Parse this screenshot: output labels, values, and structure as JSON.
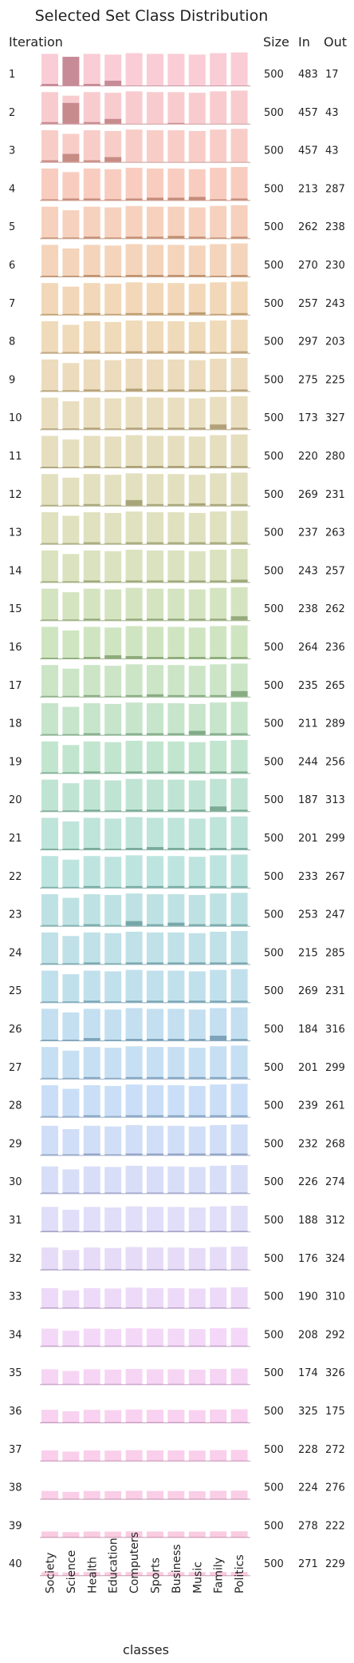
{
  "chart_data": {
    "type": "bar",
    "title": "Selected Set Class Distribution",
    "xlabel": "classes",
    "row_axis_label": "Iteration",
    "table_headers": [
      "Size",
      "In",
      "Out"
    ],
    "categories": [
      "Society",
      "Science",
      "Health",
      "Education",
      "Computers",
      "Sports",
      "Business",
      "Music",
      "Family",
      "Politics"
    ],
    "grid": false,
    "legend": "none",
    "palette": [
      "#f4a3b5",
      "#f2a48c",
      "#e8b87e",
      "#d7c28a",
      "#c5c98a",
      "#a8d08e",
      "#8fcfa8",
      "#88cdc4",
      "#8cc6dc",
      "#9ec4f0",
      "#c6c2f4",
      "#ebb8f2",
      "#f5a8dd",
      "#f6a0c2"
    ],
    "iterations": [
      {
        "iteration": "1",
        "size": 500,
        "in": 483,
        "out": 17,
        "in_counts": [
          2,
          36,
          2,
          6,
          0,
          0,
          0,
          0,
          0,
          0
        ]
      },
      {
        "iteration": "2",
        "size": 500,
        "in": 457,
        "out": 43,
        "in_counts": [
          2,
          26,
          2,
          6,
          0,
          0,
          1,
          0,
          0,
          0
        ]
      },
      {
        "iteration": "3",
        "size": 500,
        "in": 457,
        "out": 43,
        "in_counts": [
          2,
          10,
          2,
          6,
          0,
          0,
          0,
          0,
          0,
          0
        ]
      },
      {
        "iteration": "4",
        "size": 500,
        "in": 213,
        "out": 287,
        "in_counts": [
          1,
          2,
          2,
          1,
          2,
          3,
          3,
          4,
          1,
          2
        ]
      },
      {
        "iteration": "5",
        "size": 500,
        "in": 262,
        "out": 238,
        "in_counts": [
          1,
          1,
          2,
          1,
          2,
          2,
          3,
          2,
          1,
          2
        ]
      },
      {
        "iteration": "6",
        "size": 500,
        "in": 270,
        "out": 230,
        "in_counts": [
          1,
          1,
          2,
          1,
          2,
          2,
          2,
          2,
          1,
          2
        ]
      },
      {
        "iteration": "7",
        "size": 500,
        "in": 257,
        "out": 243,
        "in_counts": [
          1,
          1,
          2,
          1,
          2,
          2,
          2,
          3,
          1,
          2
        ]
      },
      {
        "iteration": "8",
        "size": 500,
        "in": 297,
        "out": 203,
        "in_counts": [
          1,
          1,
          2,
          1,
          2,
          2,
          2,
          2,
          1,
          2
        ]
      },
      {
        "iteration": "9",
        "size": 500,
        "in": 275,
        "out": 225,
        "in_counts": [
          1,
          1,
          2,
          1,
          3,
          2,
          2,
          2,
          1,
          2
        ]
      },
      {
        "iteration": "10",
        "size": 500,
        "in": 173,
        "out": 327,
        "in_counts": [
          1,
          1,
          2,
          1,
          2,
          2,
          2,
          2,
          6,
          2
        ]
      },
      {
        "iteration": "11",
        "size": 500,
        "in": 220,
        "out": 280,
        "in_counts": [
          1,
          1,
          2,
          1,
          2,
          2,
          2,
          2,
          2,
          2
        ]
      },
      {
        "iteration": "12",
        "size": 500,
        "in": 269,
        "out": 231,
        "in_counts": [
          1,
          1,
          2,
          1,
          7,
          2,
          2,
          3,
          2,
          2
        ]
      },
      {
        "iteration": "13",
        "size": 500,
        "in": 237,
        "out": 263,
        "in_counts": [
          1,
          1,
          2,
          1,
          2,
          2,
          2,
          2,
          2,
          2
        ]
      },
      {
        "iteration": "14",
        "size": 500,
        "in": 243,
        "out": 257,
        "in_counts": [
          1,
          1,
          2,
          1,
          2,
          2,
          2,
          2,
          2,
          3
        ]
      },
      {
        "iteration": "15",
        "size": 500,
        "in": 238,
        "out": 262,
        "in_counts": [
          1,
          1,
          2,
          1,
          2,
          2,
          2,
          2,
          2,
          5
        ]
      },
      {
        "iteration": "16",
        "size": 500,
        "in": 264,
        "out": 236,
        "in_counts": [
          1,
          1,
          2,
          4,
          3,
          2,
          2,
          2,
          2,
          2
        ]
      },
      {
        "iteration": "17",
        "size": 500,
        "in": 235,
        "out": 265,
        "in_counts": [
          1,
          1,
          2,
          1,
          2,
          3,
          2,
          2,
          2,
          7
        ]
      },
      {
        "iteration": "18",
        "size": 500,
        "in": 211,
        "out": 289,
        "in_counts": [
          1,
          1,
          2,
          1,
          2,
          2,
          2,
          5,
          2,
          2
        ]
      },
      {
        "iteration": "19",
        "size": 500,
        "in": 244,
        "out": 256,
        "in_counts": [
          1,
          1,
          2,
          1,
          2,
          2,
          2,
          2,
          2,
          2
        ]
      },
      {
        "iteration": "20",
        "size": 500,
        "in": 187,
        "out": 313,
        "in_counts": [
          1,
          1,
          2,
          1,
          2,
          2,
          2,
          2,
          6,
          2
        ]
      },
      {
        "iteration": "21",
        "size": 500,
        "in": 201,
        "out": 299,
        "in_counts": [
          1,
          1,
          2,
          1,
          2,
          3,
          2,
          2,
          2,
          2
        ]
      },
      {
        "iteration": "22",
        "size": 500,
        "in": 233,
        "out": 267,
        "in_counts": [
          1,
          1,
          2,
          1,
          2,
          2,
          2,
          2,
          2,
          2
        ]
      },
      {
        "iteration": "23",
        "size": 500,
        "in": 253,
        "out": 247,
        "in_counts": [
          1,
          1,
          2,
          1,
          6,
          2,
          4,
          2,
          2,
          2
        ]
      },
      {
        "iteration": "24",
        "size": 500,
        "in": 215,
        "out": 285,
        "in_counts": [
          1,
          1,
          2,
          1,
          2,
          2,
          2,
          2,
          2,
          2
        ]
      },
      {
        "iteration": "25",
        "size": 500,
        "in": 269,
        "out": 231,
        "in_counts": [
          1,
          1,
          2,
          1,
          2,
          2,
          2,
          2,
          2,
          2
        ]
      },
      {
        "iteration": "26",
        "size": 500,
        "in": 184,
        "out": 316,
        "in_counts": [
          1,
          1,
          3,
          1,
          2,
          2,
          2,
          2,
          6,
          2
        ]
      },
      {
        "iteration": "27",
        "size": 500,
        "in": 201,
        "out": 299,
        "in_counts": [
          1,
          1,
          2,
          1,
          2,
          2,
          2,
          2,
          2,
          2
        ]
      },
      {
        "iteration": "28",
        "size": 500,
        "in": 239,
        "out": 261,
        "in_counts": [
          1,
          1,
          2,
          1,
          2,
          2,
          2,
          2,
          2,
          2
        ]
      },
      {
        "iteration": "29",
        "size": 500,
        "in": 232,
        "out": 268,
        "in_counts": [
          1,
          1,
          2,
          1,
          2,
          2,
          2,
          2,
          2,
          2
        ]
      },
      {
        "iteration": "30",
        "size": 500,
        "in": 226,
        "out": 274,
        "in_counts": [
          1,
          1,
          1,
          1,
          1,
          1,
          1,
          1,
          1,
          1
        ]
      },
      {
        "iteration": "31",
        "size": 500,
        "in": 188,
        "out": 312,
        "in_counts": [
          1,
          1,
          1,
          1,
          1,
          1,
          1,
          1,
          1,
          1
        ]
      },
      {
        "iteration": "32",
        "size": 500,
        "in": 176,
        "out": 324,
        "in_counts": [
          1,
          1,
          1,
          1,
          1,
          1,
          1,
          1,
          1,
          1
        ]
      },
      {
        "iteration": "33",
        "size": 500,
        "in": 190,
        "out": 310,
        "in_counts": [
          1,
          1,
          1,
          1,
          1,
          1,
          1,
          1,
          1,
          1
        ]
      },
      {
        "iteration": "34",
        "size": 500,
        "in": 208,
        "out": 292,
        "in_counts": [
          1,
          1,
          1,
          1,
          1,
          1,
          1,
          1,
          1,
          1
        ]
      },
      {
        "iteration": "35",
        "size": 500,
        "in": 174,
        "out": 326,
        "in_counts": [
          1,
          1,
          1,
          1,
          1,
          1,
          1,
          1,
          1,
          1
        ]
      },
      {
        "iteration": "36",
        "size": 500,
        "in": 325,
        "out": 175,
        "in_counts": [
          1,
          1,
          1,
          1,
          1,
          1,
          1,
          1,
          1,
          1
        ]
      },
      {
        "iteration": "37",
        "size": 500,
        "in": 228,
        "out": 272,
        "in_counts": [
          1,
          1,
          1,
          1,
          1,
          1,
          1,
          1,
          1,
          1
        ]
      },
      {
        "iteration": "38",
        "size": 500,
        "in": 224,
        "out": 276,
        "in_counts": [
          1,
          1,
          1,
          1,
          1,
          1,
          1,
          1,
          1,
          1
        ]
      },
      {
        "iteration": "39",
        "size": 500,
        "in": 278,
        "out": 222,
        "in_counts": [
          1,
          1,
          1,
          1,
          1,
          1,
          1,
          1,
          1,
          1
        ]
      },
      {
        "iteration": "40",
        "size": 500,
        "in": 271,
        "out": 229,
        "in_counts": [
          1,
          1,
          1,
          1,
          1,
          1,
          1,
          1,
          1,
          1
        ]
      }
    ]
  }
}
